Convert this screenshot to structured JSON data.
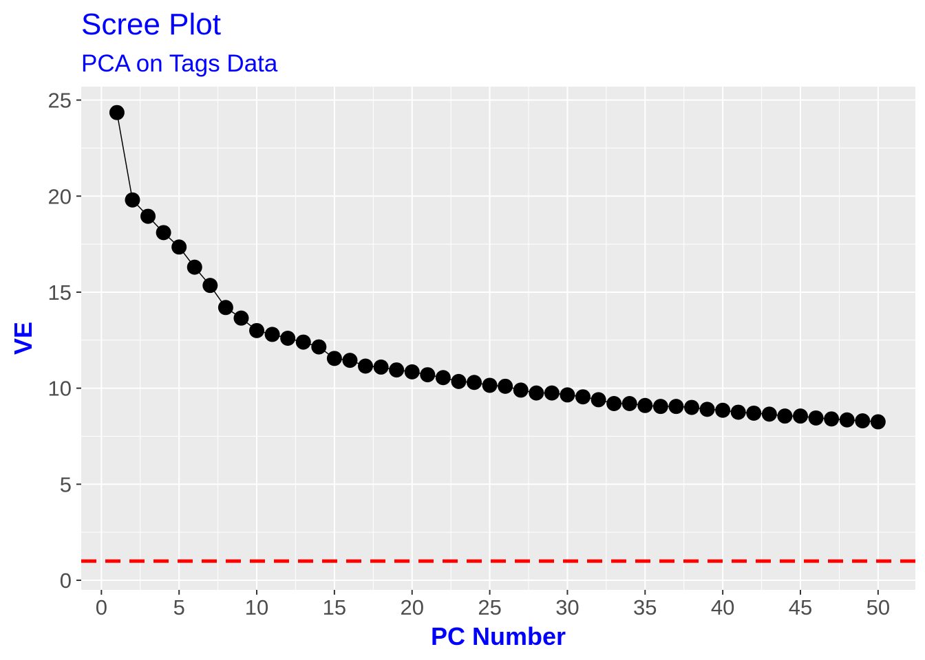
{
  "chart_data": {
    "type": "line",
    "title": "Scree Plot",
    "subtitle": "PCA on Tags Data",
    "xlabel": "PC Number",
    "ylabel": "VE",
    "xlim": [
      -1.3,
      52.4
    ],
    "ylim": [
      -0.5,
      25.7
    ],
    "xticks": [
      0,
      5,
      10,
      15,
      20,
      25,
      30,
      35,
      40,
      45,
      50
    ],
    "yticks": [
      0,
      5,
      10,
      15,
      20,
      25
    ],
    "grid": true,
    "x": [
      1,
      2,
      3,
      4,
      5,
      6,
      7,
      8,
      9,
      10,
      11,
      12,
      13,
      14,
      15,
      16,
      17,
      18,
      19,
      20,
      21,
      22,
      23,
      24,
      25,
      26,
      27,
      28,
      29,
      30,
      31,
      32,
      33,
      34,
      35,
      36,
      37,
      38,
      39,
      40,
      41,
      42,
      43,
      44,
      45,
      46,
      47,
      48,
      49,
      50
    ],
    "series": [
      {
        "values": [
          24.35,
          19.8,
          18.95,
          18.1,
          17.35,
          16.3,
          15.35,
          14.2,
          13.65,
          13.0,
          12.8,
          12.6,
          12.4,
          12.15,
          11.55,
          11.45,
          11.15,
          11.1,
          10.95,
          10.85,
          10.7,
          10.55,
          10.35,
          10.3,
          10.15,
          10.1,
          9.9,
          9.75,
          9.75,
          9.65,
          9.55,
          9.4,
          9.2,
          9.2,
          9.1,
          9.05,
          9.05,
          9.0,
          8.9,
          8.85,
          8.75,
          8.7,
          8.65,
          8.55,
          8.55,
          8.45,
          8.4,
          8.35,
          8.3,
          8.25
        ],
        "color": "#000000"
      }
    ],
    "reference_line": {
      "y": 1,
      "color": "#ff0000",
      "style": "dashed"
    },
    "colors": {
      "title": "#0000ff",
      "panel": "#ebebeb",
      "grid": "#ffffff",
      "tick_label": "#4d4d4d"
    }
  }
}
